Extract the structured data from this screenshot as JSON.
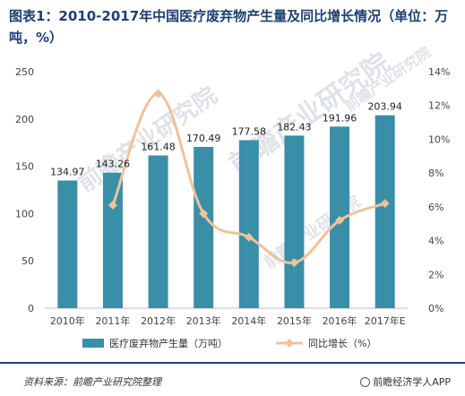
{
  "title": "图表1：2010-2017年中国医疗废弃物产生量及同比增长情况（单位：万吨，%）",
  "chart_data": {
    "type": "bar",
    "categories": [
      "2010年",
      "2011年",
      "2012年",
      "2013年",
      "2014年",
      "2015年",
      "2016年",
      "2017年E"
    ],
    "series": [
      {
        "name": "医疗废弃物产生量（万吨）",
        "type": "bar",
        "axis": "left",
        "values": [
          134.97,
          143.26,
          161.48,
          170.49,
          177.58,
          182.43,
          191.96,
          203.94
        ],
        "labels": [
          "134.97",
          "143.26",
          "161.48",
          "170.49",
          "177.58",
          "182.43",
          "191.96",
          "203.94"
        ],
        "color": "#3a8fa8"
      },
      {
        "name": "同比增长（%）",
        "type": "line",
        "axis": "right",
        "smooth": true,
        "values": [
          null,
          6.1,
          12.7,
          5.6,
          4.2,
          2.7,
          5.2,
          6.2
        ],
        "color": "#f0c29b"
      }
    ],
    "y_left": {
      "min": 0,
      "max": 250,
      "ticks": [
        "0",
        "50",
        "100",
        "150",
        "200",
        "250"
      ]
    },
    "y_right": {
      "min": 0,
      "max": 14,
      "ticks": [
        "0%",
        "2%",
        "4%",
        "6%",
        "8%",
        "10%",
        "12%",
        "14%"
      ]
    },
    "legend_position": "bottom",
    "grid": false
  },
  "watermark": "前瞻产业研究院",
  "footer": {
    "source": "资料来源：前瞻产业研究院整理",
    "brand": "前瞻经济学人APP"
  }
}
